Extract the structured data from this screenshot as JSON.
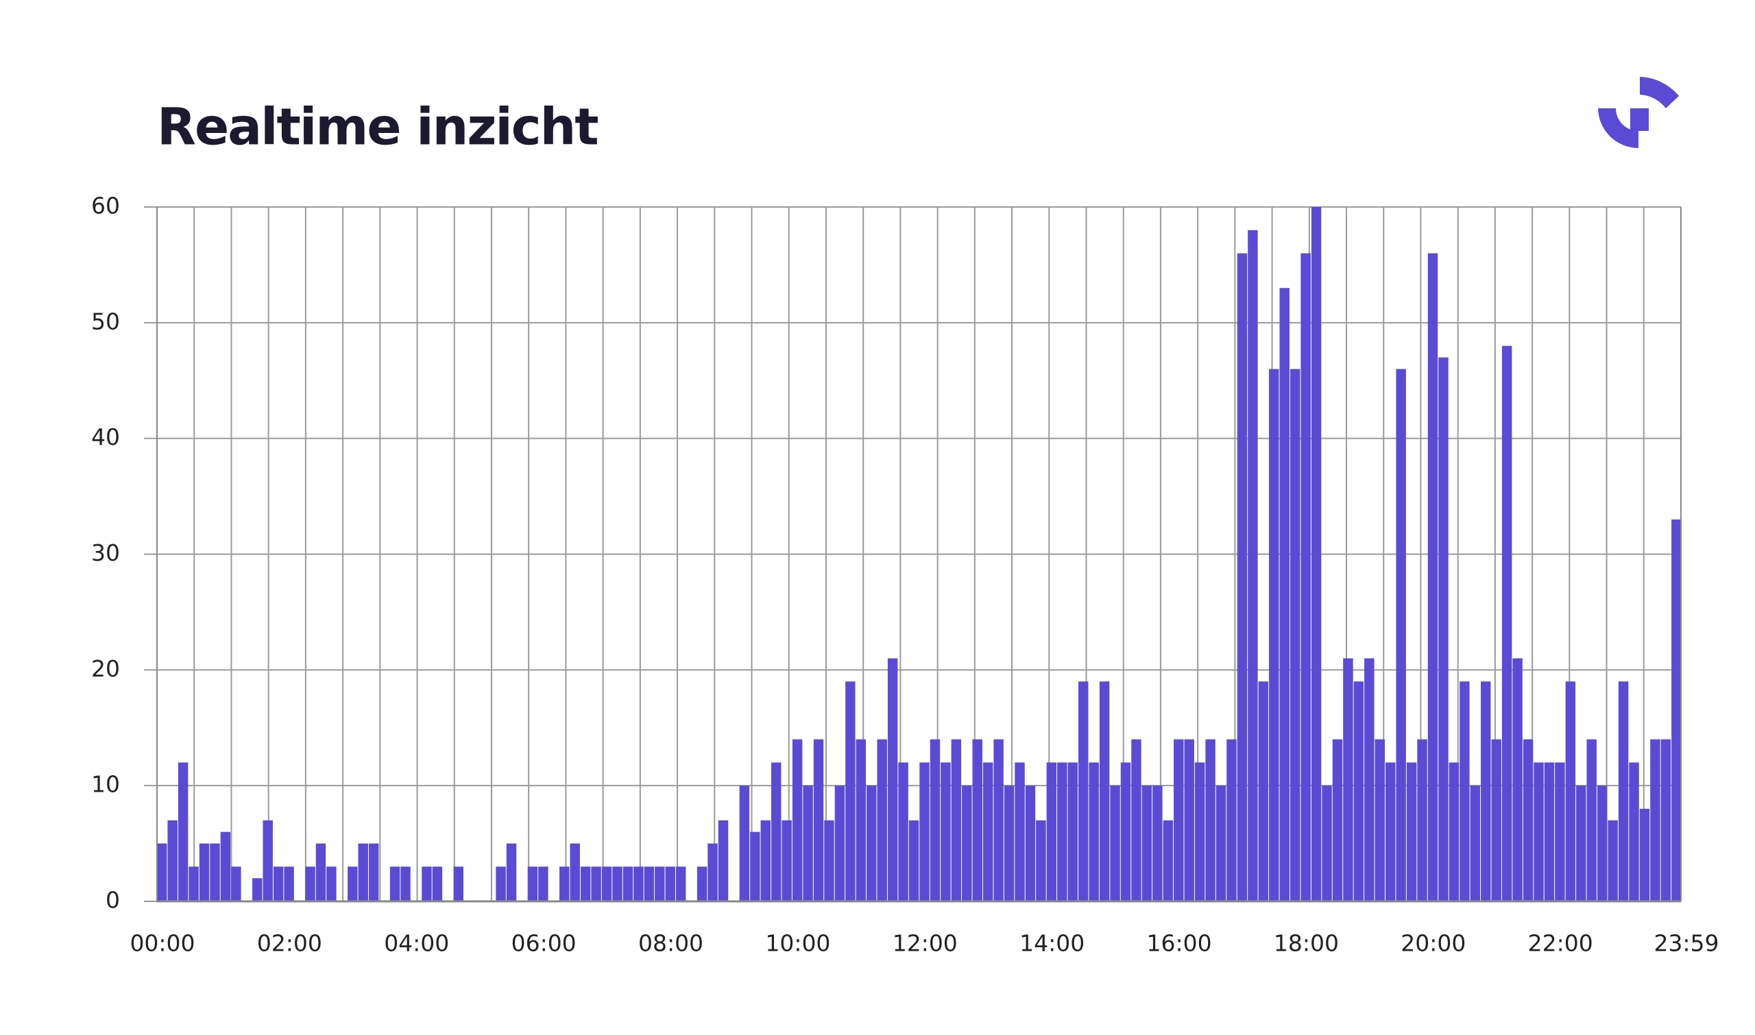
{
  "chart_data": {
    "type": "bar",
    "title": "Realtime inzicht",
    "color": "#5b4bd4",
    "grid": true,
    "x": [
      0,
      10,
      20,
      30,
      40,
      50,
      60,
      70,
      80,
      90,
      100,
      110,
      120,
      130,
      140,
      150,
      160,
      170,
      180,
      190,
      200,
      210,
      220,
      230,
      240,
      250,
      260,
      270,
      280,
      290,
      300,
      310,
      320,
      330,
      340,
      350,
      360,
      370,
      380,
      390,
      400,
      410,
      420,
      430,
      440,
      450,
      460,
      470,
      480,
      490,
      500,
      510,
      520,
      530,
      540,
      550,
      560,
      570,
      580,
      590,
      600,
      610,
      620,
      630,
      640,
      650,
      660,
      670,
      680,
      690,
      700,
      710,
      720,
      730,
      740,
      750,
      760,
      770,
      780,
      790,
      800,
      810,
      820,
      830,
      840,
      850,
      860,
      870,
      880,
      890,
      900,
      910,
      920,
      930,
      940,
      950,
      960,
      970,
      980,
      990,
      1000,
      1010,
      1020,
      1030,
      1040,
      1050,
      1060,
      1070,
      1080,
      1090,
      1100,
      1110,
      1120,
      1130,
      1140,
      1150,
      1160,
      1170,
      1180,
      1190,
      1200,
      1210,
      1220,
      1230,
      1240,
      1250,
      1260,
      1270,
      1280,
      1290,
      1300,
      1310,
      1320,
      1330,
      1340,
      1350,
      1360,
      1370,
      1380,
      1390,
      1400,
      1410,
      1420,
      1430
    ],
    "values": [
      5,
      7,
      12,
      3,
      5,
      5,
      6,
      3,
      0,
      2,
      7,
      3,
      3,
      0,
      3,
      5,
      3,
      0,
      3,
      5,
      5,
      0,
      3,
      3,
      0,
      3,
      3,
      0,
      3,
      0,
      0,
      0,
      3,
      5,
      0,
      3,
      3,
      0,
      3,
      5,
      3,
      3,
      3,
      3,
      3,
      3,
      3,
      3,
      3,
      3,
      0,
      3,
      5,
      7,
      0,
      10,
      6,
      7,
      12,
      7,
      14,
      10,
      14,
      7,
      10,
      19,
      14,
      10,
      14,
      21,
      12,
      7,
      12,
      14,
      12,
      14,
      10,
      14,
      12,
      14,
      10,
      12,
      10,
      7,
      12,
      12,
      12,
      19,
      12,
      19,
      10,
      12,
      14,
      10,
      10,
      7,
      14,
      14,
      12,
      14,
      10,
      14,
      56,
      58,
      19,
      46,
      53,
      46,
      56,
      60,
      10,
      14,
      21,
      19,
      21,
      14,
      12,
      46,
      12,
      14,
      56,
      47,
      12,
      19,
      10,
      19,
      14,
      48,
      21,
      14,
      12,
      12,
      12,
      19,
      10,
      14,
      10,
      7,
      19,
      12,
      8,
      14,
      14,
      33
    ],
    "xlim": [
      0,
      1439
    ],
    "xticks": [
      {
        "value": 0,
        "label": "00:00"
      },
      {
        "value": 120,
        "label": "02:00"
      },
      {
        "value": 240,
        "label": "04:00"
      },
      {
        "value": 360,
        "label": "06:00"
      },
      {
        "value": 480,
        "label": "08:00"
      },
      {
        "value": 600,
        "label": "10:00"
      },
      {
        "value": 720,
        "label": "12:00"
      },
      {
        "value": 840,
        "label": "14:00"
      },
      {
        "value": 960,
        "label": "16:00"
      },
      {
        "value": 1080,
        "label": "18:00"
      },
      {
        "value": 1200,
        "label": "20:00"
      },
      {
        "value": 1320,
        "label": "22:00"
      },
      {
        "value": 1439,
        "label": "23:59"
      }
    ],
    "ylim": [
      0,
      60
    ],
    "yticks": [
      0,
      10,
      20,
      30,
      40,
      50,
      60
    ]
  }
}
